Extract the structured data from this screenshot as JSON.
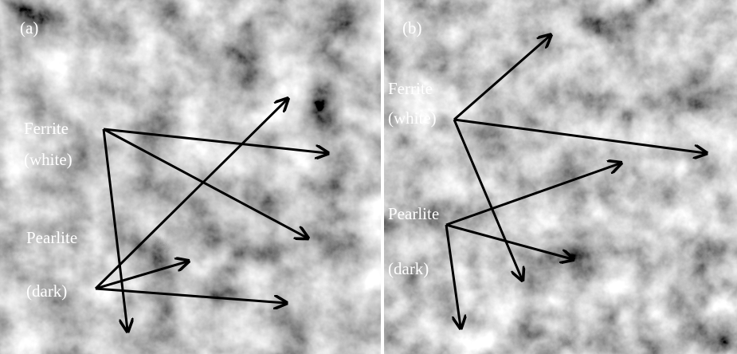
{
  "panels": [
    {
      "label": "(a)",
      "phases": [
        {
          "name": "Ferrite",
          "description": "(white)"
        },
        {
          "name": "Pearlite",
          "description": "(dark)"
        }
      ]
    },
    {
      "label": "(b)",
      "phases": [
        {
          "name": "Ferrite",
          "description": "(white)"
        },
        {
          "name": "Pearlite",
          "description": "(dark)"
        }
      ]
    }
  ]
}
